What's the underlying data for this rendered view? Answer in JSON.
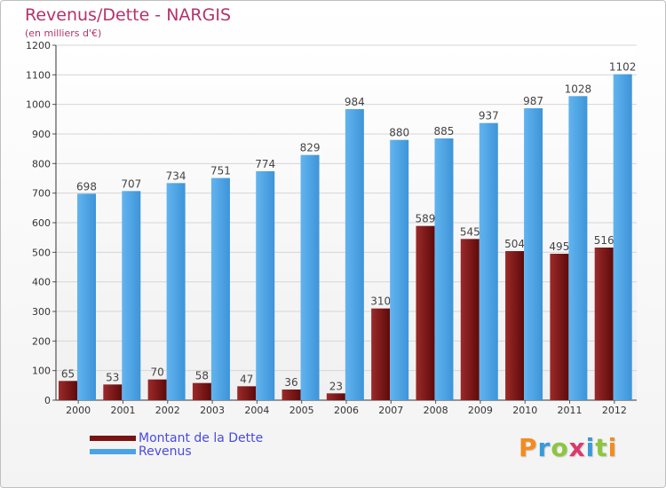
{
  "chart_data": {
    "type": "bar",
    "title": "Revenus/Dette - NARGIS",
    "subtitle": "(en milliers d'€)",
    "categories": [
      "2000",
      "2001",
      "2002",
      "2003",
      "2004",
      "2005",
      "2006",
      "2007",
      "2008",
      "2009",
      "2010",
      "2011",
      "2012"
    ],
    "series": [
      {
        "name": "Montant de la Dette",
        "color": "#7a1414",
        "values": [
          65,
          53,
          70,
          58,
          47,
          36,
          23,
          310,
          589,
          545,
          504,
          495,
          516
        ]
      },
      {
        "name": "Revenus",
        "color": "#4aa3e6",
        "values": [
          698,
          707,
          734,
          751,
          774,
          829,
          984,
          880,
          885,
          937,
          987,
          1028,
          1102
        ]
      }
    ],
    "ylim": [
      0,
      1200
    ],
    "yticks": [
      0,
      100,
      200,
      300,
      400,
      500,
      600,
      700,
      800,
      900,
      1000,
      1100,
      1200
    ],
    "grid": true,
    "legend_position": "bottom-left"
  },
  "logo_text": "Proxiti",
  "logo_colors": [
    "#f28c1f",
    "#3a9ad9",
    "#8cc63f",
    "#d93a6e",
    "#3a9ad9",
    "#8cc63f",
    "#f28c1f"
  ]
}
